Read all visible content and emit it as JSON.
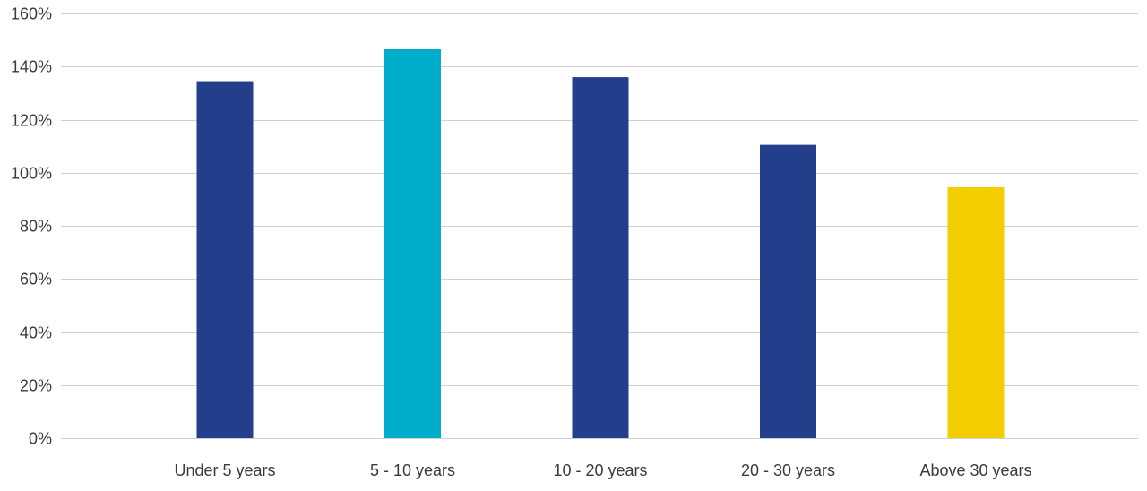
{
  "chart_data": {
    "type": "bar",
    "categories": [
      "Under 5 years",
      "5 - 10 years",
      "10 - 20 years",
      "20 - 30 years",
      "Above 30 years"
    ],
    "values": [
      134.5,
      146.5,
      136,
      110.5,
      94.5
    ],
    "colors": [
      "#233e8b",
      "#00aecb",
      "#233e8b",
      "#233e8b",
      "#f2cd00"
    ],
    "y_unit": "%",
    "ylim": [
      0,
      160
    ],
    "yticks": [
      0,
      20,
      40,
      60,
      80,
      100,
      120,
      140,
      160
    ],
    "ytick_labels": [
      "0%",
      "20%",
      "40%",
      "60%",
      "80%",
      "100%",
      "120%",
      "140%",
      "160%"
    ],
    "grid": true,
    "title": "",
    "xlabel": "",
    "ylabel": ""
  }
}
